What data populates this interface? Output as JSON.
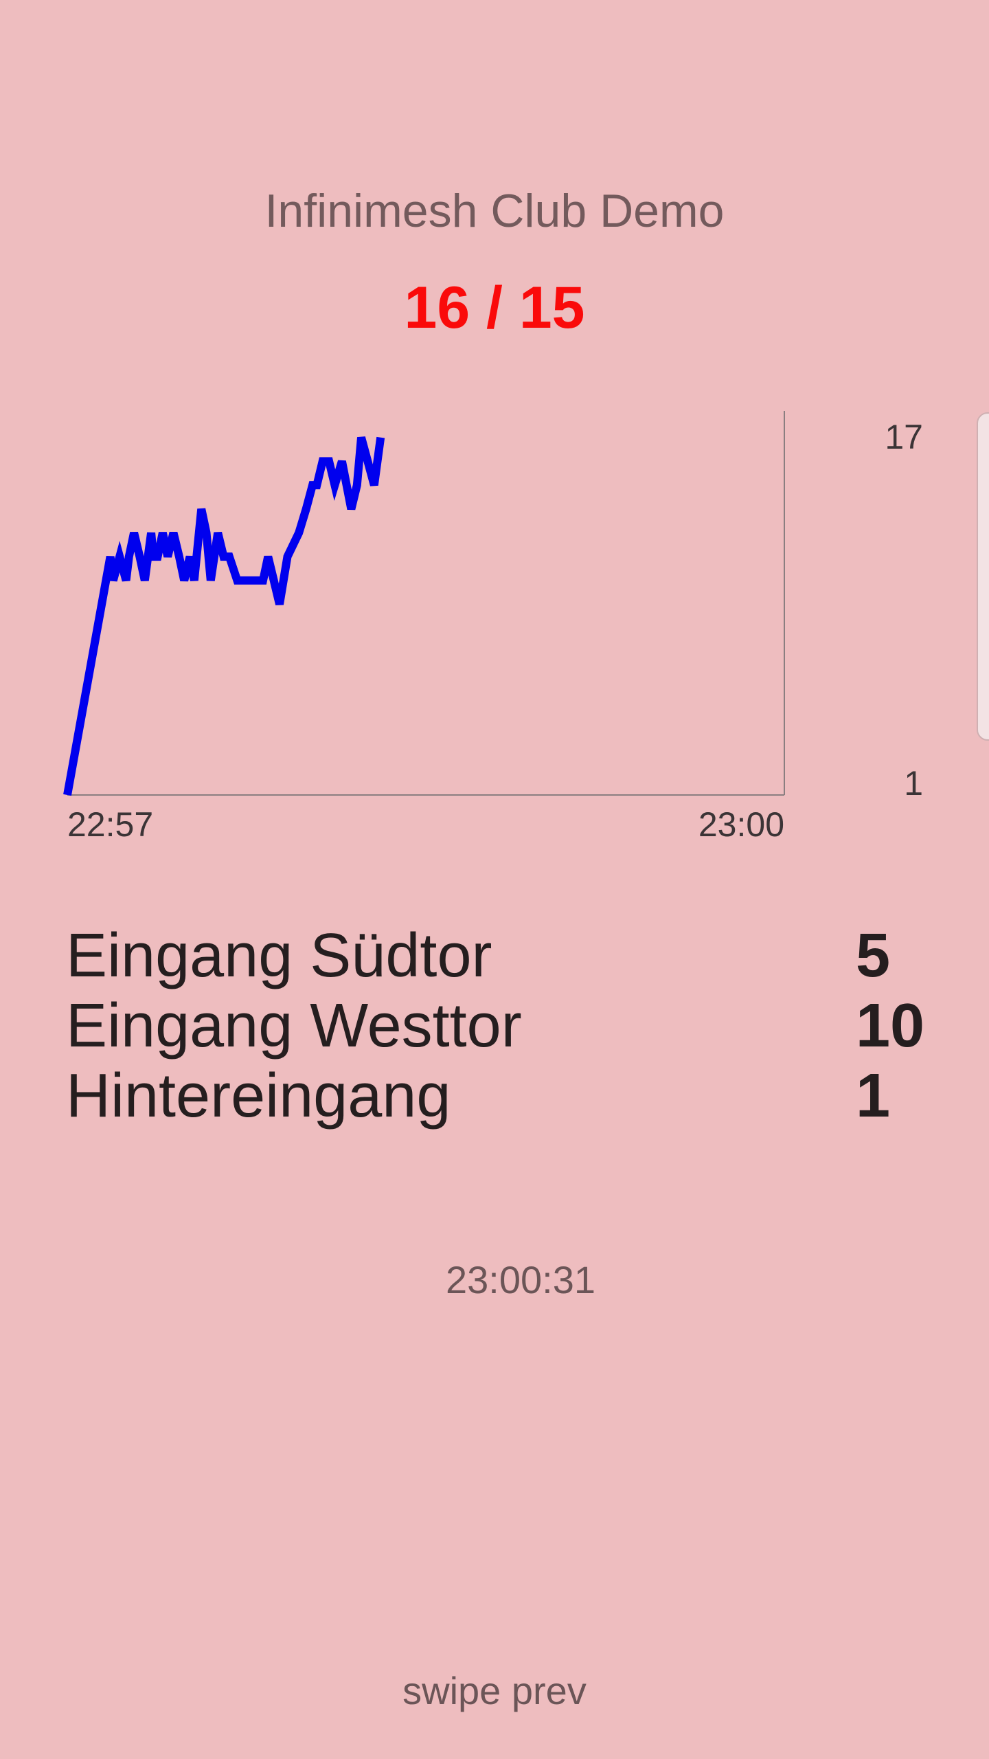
{
  "header": {
    "title": "Infinimesh Club Demo",
    "ratio": "16 / 15"
  },
  "chart_data": {
    "type": "line",
    "x_tick_labels": [
      "22:57",
      "23:00"
    ],
    "y_tick_labels": [
      "17",
      "1"
    ],
    "ylim": [
      1,
      17
    ],
    "xlim": [
      0,
      1
    ],
    "line_color": "#0000ee",
    "series": [
      {
        "values": [
          [
            0.0,
            1
          ],
          [
            0.06,
            11
          ],
          [
            0.064,
            10
          ],
          [
            0.073,
            11
          ],
          [
            0.082,
            10
          ],
          [
            0.086,
            11
          ],
          [
            0.093,
            12
          ],
          [
            0.101,
            11
          ],
          [
            0.108,
            10
          ],
          [
            0.117,
            12
          ],
          [
            0.12,
            11
          ],
          [
            0.126,
            11
          ],
          [
            0.133,
            12
          ],
          [
            0.14,
            11
          ],
          [
            0.148,
            12
          ],
          [
            0.156,
            11
          ],
          [
            0.163,
            10
          ],
          [
            0.171,
            11
          ],
          [
            0.177,
            10
          ],
          [
            0.187,
            13
          ],
          [
            0.194,
            12
          ],
          [
            0.2,
            10
          ],
          [
            0.21,
            12
          ],
          [
            0.218,
            11
          ],
          [
            0.226,
            11
          ],
          [
            0.237,
            10
          ],
          [
            0.244,
            10
          ],
          [
            0.251,
            10
          ],
          [
            0.258,
            10
          ],
          [
            0.266,
            10
          ],
          [
            0.273,
            10
          ],
          [
            0.28,
            11
          ],
          [
            0.288,
            10
          ],
          [
            0.296,
            9
          ],
          [
            0.307,
            11
          ],
          [
            0.323,
            12
          ],
          [
            0.333,
            13
          ],
          [
            0.342,
            14
          ],
          [
            0.348,
            14
          ],
          [
            0.356,
            15
          ],
          [
            0.365,
            15
          ],
          [
            0.373,
            14
          ],
          [
            0.383,
            15
          ],
          [
            0.396,
            13
          ],
          [
            0.404,
            14
          ],
          [
            0.41,
            16
          ],
          [
            0.428,
            14
          ],
          [
            0.437,
            16
          ]
        ]
      }
    ]
  },
  "gates": [
    {
      "name": "Eingang Südtor",
      "count": "5"
    },
    {
      "name": "Eingang Westtor",
      "count": "10"
    },
    {
      "name": "Hintereingang",
      "count": "1"
    }
  ],
  "footer": {
    "time": "23:00:31",
    "swipe_hint": "swipe prev"
  }
}
